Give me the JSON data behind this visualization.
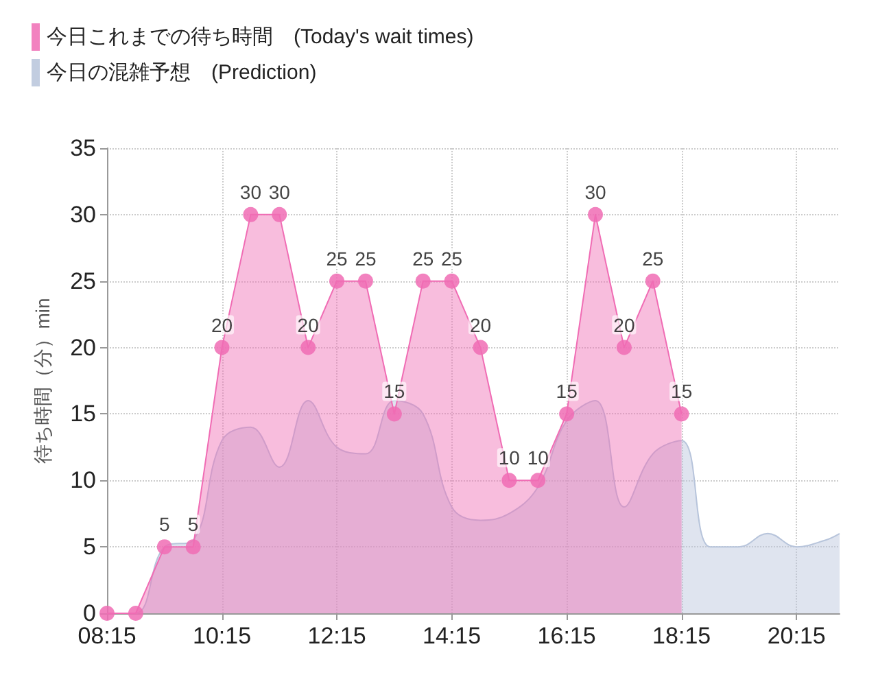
{
  "chart_data": {
    "type": "area",
    "ylabel": "待ち時間（分）min",
    "legend": "top left",
    "grid": true,
    "xlim": [
      8.25,
      21.0
    ],
    "ylim": [
      0,
      35
    ],
    "yticks": [
      0,
      5,
      10,
      15,
      20,
      25,
      30,
      35
    ],
    "xticks": [
      {
        "value": 8.25,
        "label": "08:15"
      },
      {
        "value": 10.25,
        "label": "10:15"
      },
      {
        "value": 12.25,
        "label": "12:15"
      },
      {
        "value": 14.25,
        "label": "14:15"
      },
      {
        "value": 16.25,
        "label": "16:15"
      },
      {
        "value": 18.25,
        "label": "18:15"
      },
      {
        "value": 20.25,
        "label": "20:15"
      }
    ],
    "series": [
      {
        "name": "今日これまでの待ち時間　(Today's wait times)",
        "color": "#f06cb4",
        "marker": "circle",
        "x": [
          8.25,
          8.75,
          9.25,
          9.75,
          10.25,
          10.75,
          11.25,
          11.75,
          12.25,
          12.75,
          13.25,
          13.75,
          14.25,
          14.75,
          15.25,
          15.75,
          16.25,
          16.75,
          17.25,
          17.75,
          18.25
        ],
        "values": [
          0,
          0,
          5,
          5,
          20,
          30,
          30,
          20,
          25,
          25,
          15,
          25,
          25,
          20,
          10,
          10,
          15,
          30,
          20,
          25,
          15
        ],
        "value_labels": [
          null,
          null,
          "5",
          "5",
          "20",
          "30",
          "30",
          "20",
          "25",
          "25",
          "15",
          "25",
          "25",
          "20",
          "10",
          "10",
          "15",
          "30",
          "20",
          "25",
          "15"
        ]
      },
      {
        "name": "今日の混雑予想　(Prediction)",
        "color": "#b7c4db",
        "marker": "none",
        "x": [
          8.25,
          8.75,
          9.25,
          9.75,
          10.25,
          10.75,
          11.25,
          11.75,
          12.25,
          12.75,
          13.25,
          13.75,
          14.25,
          14.75,
          15.25,
          15.75,
          16.25,
          16.75,
          17.25,
          17.75,
          18.25,
          18.75,
          19.25,
          19.75,
          20.25,
          20.75,
          21.0
        ],
        "values": [
          0,
          0,
          5,
          5.5,
          13,
          14,
          11,
          16,
          12.5,
          12,
          16,
          15,
          8,
          7,
          7.5,
          9.5,
          14.5,
          16,
          8,
          12,
          13,
          5,
          5,
          6,
          5,
          5.5,
          6
        ]
      }
    ]
  }
}
